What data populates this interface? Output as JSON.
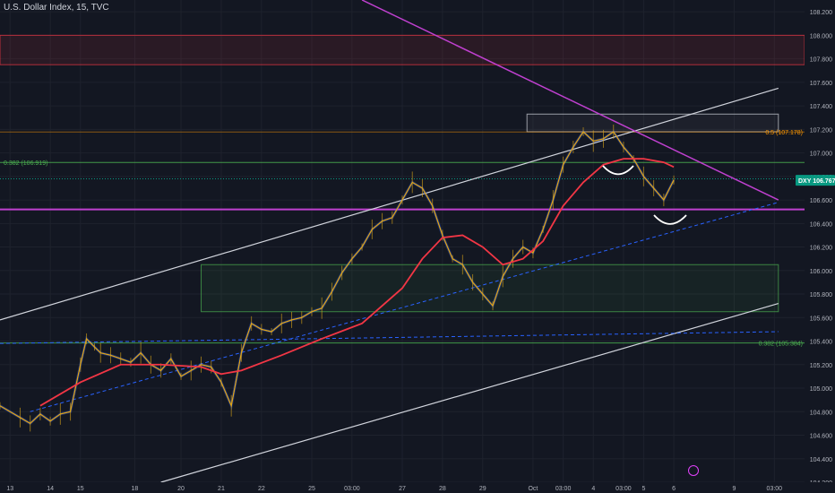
{
  "header": {
    "title": "U.S. Dollar Index, 15, TVC"
  },
  "colors": {
    "background": "#131722",
    "grid": "#1e222d",
    "price_line": "#e0a818",
    "ema_fast": "#f23645",
    "ema_mid": "#ff9800",
    "ema_slow": "#2962ff",
    "trendline_white": "#d1d4dc",
    "trendline_magenta": "#c040d0",
    "fib_green": "#4caf50",
    "fib_orange": "#ff9800",
    "zone_red": "#f23645",
    "zone_green": "#4caf50",
    "symbol_tag": "#089981"
  },
  "chart_data": {
    "type": "line",
    "title": "U.S. Dollar Index, 15, TVC",
    "ylim": [
      104.2,
      108.3
    ],
    "y_ticks": [
      "108.200",
      "108.000",
      "107.800",
      "107.600",
      "107.400",
      "107.200",
      "107.000",
      "106.800",
      "106.600",
      "106.400",
      "106.200",
      "106.000",
      "105.800",
      "105.600",
      "105.400",
      "105.200",
      "105.000",
      "104.800",
      "104.600",
      "104.400",
      "104.200"
    ],
    "y_tick_values": [
      108.2,
      108.0,
      107.8,
      107.6,
      107.4,
      107.2,
      107.0,
      106.8,
      106.6,
      106.4,
      106.2,
      106.0,
      105.8,
      105.6,
      105.4,
      105.2,
      105.0,
      104.8,
      104.6,
      104.4,
      104.2
    ],
    "x_ticks": [
      "13",
      "14",
      "15",
      "18",
      "20",
      "21",
      "22",
      "25",
      "03:00",
      "27",
      "28",
      "29",
      "Oct",
      "03:00",
      "4",
      "03:00",
      "5",
      "6",
      "9",
      "03:00"
    ],
    "x_tick_values": [
      0.5,
      2.5,
      4.0,
      6.7,
      9.0,
      11.0,
      13.0,
      15.5,
      17.5,
      20.0,
      22.0,
      24.0,
      26.5,
      28.0,
      29.5,
      31.0,
      32.0,
      33.5,
      36.5,
      38.5
    ],
    "xlim": [
      0,
      40
    ],
    "grid": true,
    "symbol_tag": {
      "label": "DXY",
      "value": "106.767"
    },
    "fib_labels": [
      {
        "text": "0.382 (106.919)",
        "value": 106.919
      },
      {
        "text": "0.5 (107.178)",
        "value": 107.178
      },
      {
        "text": "0.382 (105.384)",
        "value": 105.384
      }
    ],
    "horizontal_levels": [
      {
        "value": 106.52,
        "role": "support"
      },
      {
        "value": 106.78,
        "role": "current"
      }
    ],
    "zones": [
      {
        "role": "resistance",
        "y0": 107.75,
        "y1": 108.0,
        "x0": 0,
        "x1": 40
      },
      {
        "role": "target",
        "y0": 107.18,
        "y1": 107.33,
        "x0": 26.2,
        "x1": 38.7
      },
      {
        "role": "demand",
        "y0": 105.65,
        "y1": 106.05,
        "x0": 10.0,
        "x1": 38.7
      }
    ],
    "trendlines": [
      {
        "role": "upper-channel",
        "x": [
          0,
          38.7
        ],
        "y": [
          105.58,
          107.55
        ]
      },
      {
        "role": "lower-channel",
        "x": [
          8.0,
          38.7
        ],
        "y": [
          104.2,
          105.72
        ]
      },
      {
        "role": "descending",
        "x": [
          18.0,
          38.7
        ],
        "y": [
          108.3,
          106.6
        ]
      },
      {
        "role": "dashed-rising",
        "x": [
          1.5,
          38.7
        ],
        "y": [
          104.8,
          106.58
        ]
      },
      {
        "role": "dashed-flat",
        "x": [
          0,
          38.7
        ],
        "y": [
          105.38,
          105.48
        ]
      }
    ],
    "series": [
      {
        "name": "",
        "role": "price",
        "x": [
          0,
          1,
          1.5,
          2,
          2.5,
          3,
          3.5,
          4,
          4.3,
          4.7,
          5,
          5.5,
          6,
          6.5,
          7,
          7.5,
          8,
          8.5,
          9,
          9.5,
          10,
          10.5,
          11,
          11.5,
          12,
          12.5,
          13,
          13.5,
          14,
          14.5,
          15,
          15.5,
          16,
          16.5,
          17,
          17.5,
          18,
          18.5,
          19,
          19.5,
          20,
          20.5,
          21,
          21.5,
          22,
          22.5,
          23,
          23.5,
          24,
          24.5,
          25,
          25.5,
          26,
          26.5,
          27,
          27.5,
          28,
          28.5,
          29,
          29.5,
          30,
          30.5,
          31,
          31.5,
          32,
          32.5,
          33,
          33.5
        ],
        "y": [
          104.85,
          104.75,
          104.7,
          104.78,
          104.72,
          104.78,
          104.8,
          105.2,
          105.42,
          105.35,
          105.3,
          105.28,
          105.25,
          105.22,
          105.3,
          105.2,
          105.15,
          105.25,
          105.1,
          105.15,
          105.2,
          105.18,
          105.05,
          104.85,
          105.3,
          105.55,
          105.5,
          105.48,
          105.55,
          105.58,
          105.6,
          105.65,
          105.68,
          105.82,
          105.98,
          106.1,
          106.2,
          106.35,
          106.42,
          106.45,
          106.6,
          106.75,
          106.7,
          106.55,
          106.3,
          106.1,
          106.05,
          105.9,
          105.8,
          105.7,
          105.95,
          106.1,
          106.2,
          106.15,
          106.35,
          106.6,
          106.9,
          107.05,
          107.18,
          107.1,
          107.12,
          107.18,
          107.05,
          106.95,
          106.8,
          106.7,
          106.6,
          106.77
        ]
      },
      {
        "name": "",
        "role": "ema-slow",
        "x": [
          2,
          4,
          6,
          8,
          10,
          11,
          12,
          14,
          16,
          18,
          20,
          21,
          22,
          23,
          24,
          25,
          26,
          27,
          28,
          29,
          30,
          31,
          32,
          33,
          33.5
        ],
        "y": [
          104.85,
          105.05,
          105.2,
          105.2,
          105.18,
          105.12,
          105.15,
          105.28,
          105.42,
          105.55,
          105.85,
          106.1,
          106.28,
          106.3,
          106.2,
          106.05,
          106.1,
          106.25,
          106.55,
          106.75,
          106.9,
          106.95,
          106.95,
          106.92,
          106.88
        ]
      }
    ]
  }
}
